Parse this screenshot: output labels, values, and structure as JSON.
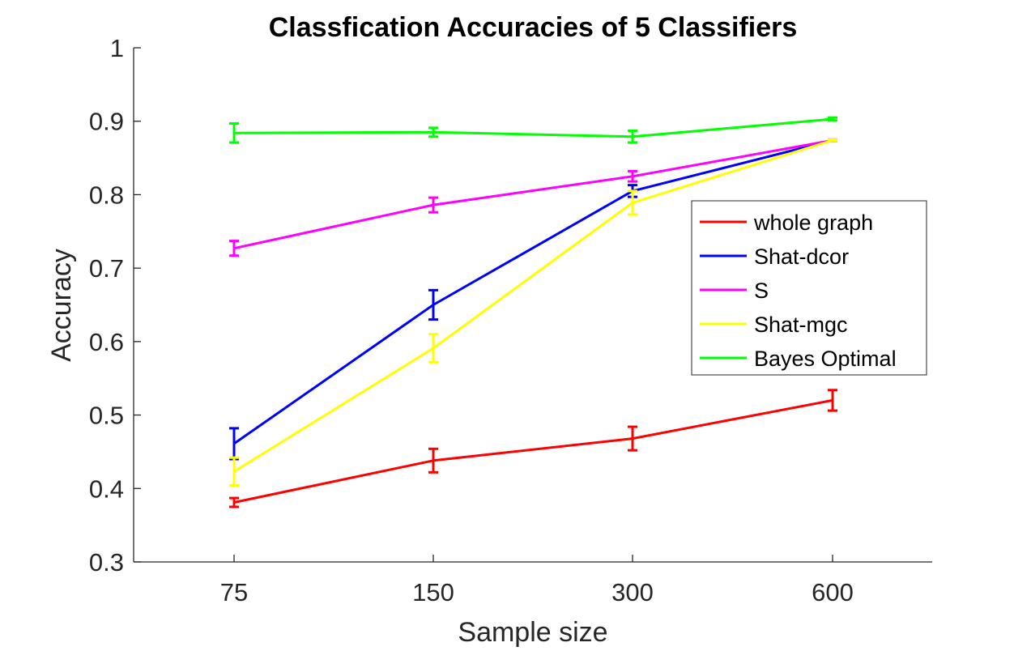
{
  "chart_data": {
    "type": "line",
    "title": "Classfication Accuracies of 5 Classifiers",
    "xlabel": "Sample size",
    "ylabel": "Accuracy",
    "categories": [
      "75",
      "150",
      "300",
      "600"
    ],
    "ylim": [
      0.3,
      1
    ],
    "yticks": [
      "0.3",
      "0.4",
      "0.5",
      "0.6",
      "0.7",
      "0.8",
      "0.9",
      "1"
    ],
    "grid": false,
    "legend_position": "right",
    "error_bars": true,
    "series": [
      {
        "name": "whole graph",
        "color": "#ff0000",
        "values": [
          0.381,
          0.438,
          0.468,
          0.52
        ],
        "errors": [
          0.006,
          0.016,
          0.016,
          0.014
        ]
      },
      {
        "name": "Shat-dcor",
        "color": "#0000ff",
        "values": [
          0.461,
          0.65,
          0.805,
          0.874
        ],
        "errors": [
          0.021,
          0.02,
          0.008,
          0.001
        ]
      },
      {
        "name": "S",
        "color": "#ff00ff",
        "values": [
          0.727,
          0.786,
          0.825,
          0.874
        ],
        "errors": [
          0.01,
          0.01,
          0.007,
          0.001
        ]
      },
      {
        "name": "Shat-mgc",
        "color": "#ffff00",
        "values": [
          0.423,
          0.591,
          0.789,
          0.874
        ],
        "errors": [
          0.019,
          0.019,
          0.016,
          0.001
        ]
      },
      {
        "name": "Bayes Optimal",
        "color": "#00ff00",
        "values": [
          0.884,
          0.885,
          0.879,
          0.903
        ],
        "errors": [
          0.013,
          0.006,
          0.008,
          0.002
        ]
      }
    ]
  }
}
